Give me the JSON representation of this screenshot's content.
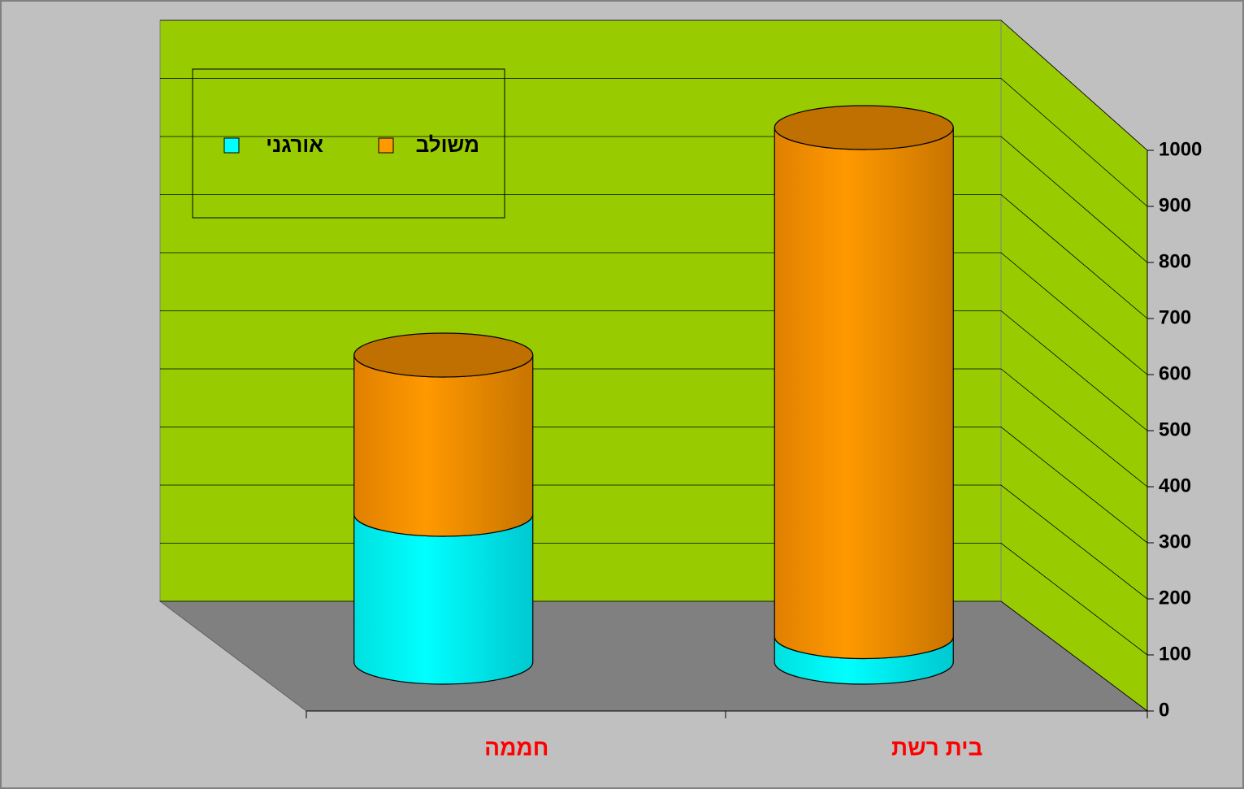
{
  "chart_data": {
    "type": "bar3d_cylinder_stacked",
    "categories": [
      "בית רשת",
      "חממה"
    ],
    "series": [
      {
        "name": "אורגני",
        "color": "#00ffff",
        "values": [
          45,
          260
        ]
      },
      {
        "name": "משולב",
        "color": "#ff9900",
        "values": [
          895,
          280
        ]
      }
    ],
    "ylim": [
      0,
      1000
    ],
    "yticks": [
      0,
      100,
      200,
      300,
      400,
      500,
      600,
      700,
      800,
      900,
      1000
    ],
    "grid": true,
    "legend": "top-left"
  }
}
